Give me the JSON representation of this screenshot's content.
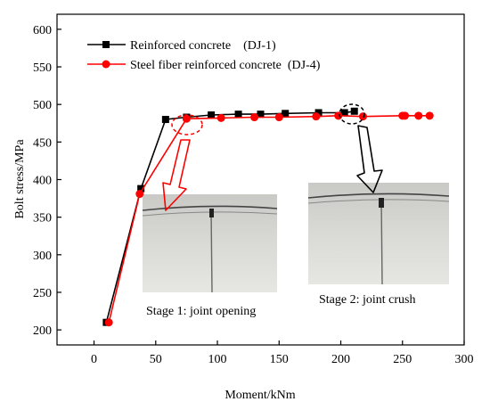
{
  "chart_data": {
    "type": "line",
    "xlabel": "Moment/kNm",
    "ylabel": "Bolt stress/MPa",
    "xlim": [
      -30,
      300
    ],
    "ylim": [
      180,
      620
    ],
    "xticks": [
      0,
      50,
      100,
      150,
      200,
      250,
      300
    ],
    "yticks": [
      200,
      250,
      300,
      350,
      400,
      450,
      500,
      550,
      600
    ],
    "grid": false,
    "legend_position": "top-left",
    "series": [
      {
        "name": "Reinforced concrete    (DJ-1)",
        "color": "#000000",
        "marker": "square",
        "x": [
          10,
          38,
          58,
          75,
          95,
          117,
          135,
          155,
          182,
          203,
          211
        ],
        "y": [
          210,
          388,
          480,
          483,
          486,
          487,
          487,
          488,
          489,
          489,
          491
        ]
      },
      {
        "name": "Steel fiber reinforced concrete  (DJ-4)",
        "color": "#ff0000",
        "marker": "circle",
        "x": [
          12,
          37,
          75,
          103,
          130,
          150,
          180,
          198,
          218,
          250,
          252,
          263,
          272
        ],
        "y": [
          210,
          381,
          481,
          482,
          483,
          483,
          484,
          485,
          484,
          485,
          485,
          485,
          485
        ]
      }
    ],
    "annotations": [
      {
        "text": "Stage 1: joint opening",
        "marker": "red-dashed-circle",
        "at": [
          76,
          483
        ]
      },
      {
        "text": "Stage 2: joint crush",
        "marker": "black-dashed-circle",
        "at": [
          208,
          491
        ]
      }
    ]
  }
}
